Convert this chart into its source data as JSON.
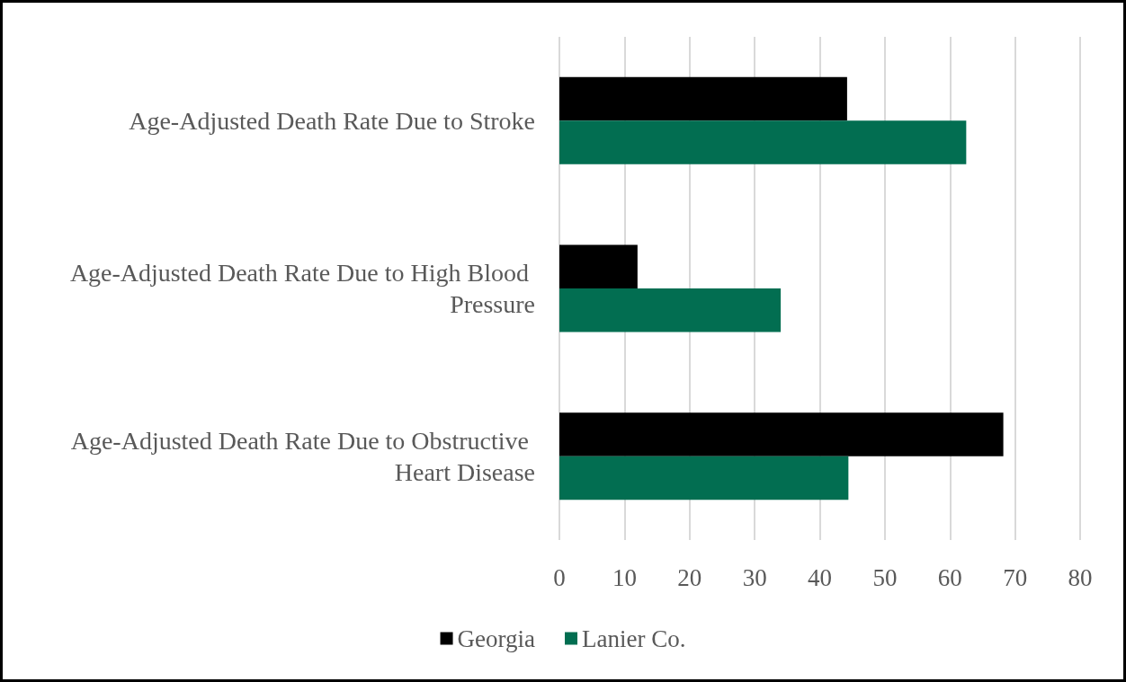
{
  "chart_data": {
    "type": "bar",
    "orientation": "horizontal",
    "categories": [
      "Age-Adjusted Death Rate Due to Stroke",
      "Age-Adjusted Death Rate Due to High Blood Pressure",
      "Age-Adjusted Death Rate Due to Obstructive Heart Disease"
    ],
    "series": [
      {
        "name": "Georgia",
        "color": "#000000",
        "values": [
          44.2,
          12.0,
          68.2
        ]
      },
      {
        "name": "Lanier Co.",
        "color": "#026e51",
        "values": [
          62.5,
          34.0,
          44.4
        ]
      }
    ],
    "xlim": [
      0,
      80
    ],
    "xticks": [
      0,
      10,
      20,
      30,
      40,
      50,
      60,
      70,
      80
    ],
    "grid": "x",
    "legend": "bottom"
  }
}
